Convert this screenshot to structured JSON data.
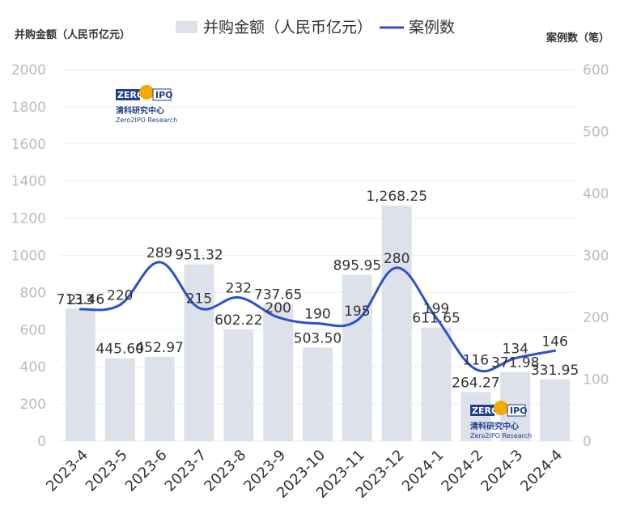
{
  "chart_data": {
    "type": "bar",
    "categories": [
      "2023-4",
      "2023-5",
      "2023-6",
      "2023-7",
      "2023-8",
      "2023-9",
      "2023-10",
      "2023-11",
      "2023-12",
      "2024-1",
      "2024-2",
      "2024-3",
      "2024-4"
    ],
    "series": [
      {
        "name": "并购金额（人民币亿元）",
        "type": "bar",
        "axis": "left",
        "values": [
          713.46,
          445.6,
          452.97,
          951.32,
          602.22,
          737.65,
          503.5,
          895.95,
          1268.25,
          611.65,
          264.27,
          371.98,
          331.95
        ],
        "labels": [
          "713.46",
          "445.60",
          "452.97",
          "951.32",
          "602.22",
          "737.65",
          "503.50",
          "895.95",
          "1,268.25",
          "611.65",
          "264.27",
          "371.98",
          "331.95"
        ]
      },
      {
        "name": "案例数",
        "type": "line",
        "axis": "right",
        "values": [
          213,
          220,
          289,
          215,
          232,
          200,
          190,
          195,
          280,
          199,
          116,
          134,
          146
        ],
        "labels": [
          "213",
          "220",
          "289",
          "215",
          "232",
          "200",
          "190",
          "195",
          "280",
          "199",
          "116",
          "134",
          "146"
        ]
      }
    ],
    "ylabel_left": "并购金额（人民币亿元）",
    "ylabel_right": "案例数（笔）",
    "ylim_left": [
      0,
      2000
    ],
    "ylim_right": [
      0,
      600
    ],
    "yticks_left": [
      "0",
      "200",
      "400",
      "600",
      "800",
      "1000",
      "1200",
      "1400",
      "1600",
      "1800",
      "2000"
    ],
    "yticks_right": [
      "0",
      "100",
      "200",
      "300",
      "400",
      "500",
      "600"
    ],
    "grid": true,
    "legend_position": "top-center",
    "colors": {
      "bar": "#dde1ea",
      "line": "#2d4fd0",
      "grid": "#eeeeee",
      "tick": "#b9bcc4",
      "logo": "#1f3f8f"
    }
  },
  "watermark": {
    "brand": "ZERO2IPO",
    "cn": "清科研究中心",
    "en": "Zero2IPO Research"
  }
}
